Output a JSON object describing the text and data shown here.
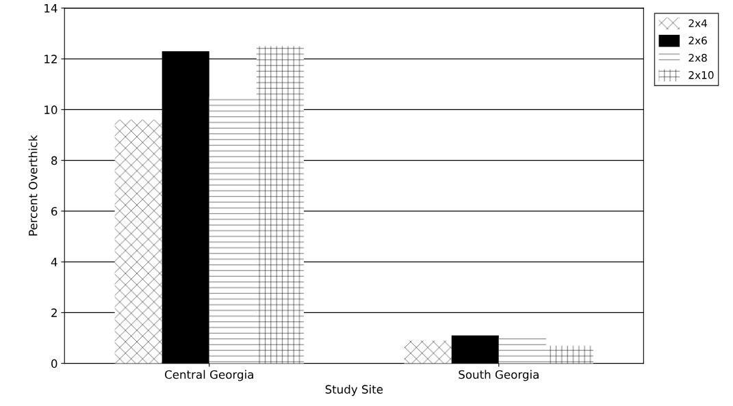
{
  "chart_data": {
    "type": "bar",
    "xlabel": "Study Site",
    "ylabel": "Percent Overthick",
    "categories": [
      "Central Georgia",
      "South Georgia"
    ],
    "series": [
      {
        "name": "2x4",
        "color": "#ffffff",
        "values": [
          9.6,
          0.9
        ]
      },
      {
        "name": "2x6",
        "color": "#000000",
        "values": [
          12.3,
          1.1
        ]
      },
      {
        "name": "2x8",
        "color": "#ffffff",
        "values": [
          10.5,
          1.0
        ]
      },
      {
        "name": "2x10",
        "color": "#ffffff",
        "values": [
          12.5,
          0.7
        ]
      }
    ],
    "ylim": [
      0,
      14
    ],
    "yticks": [
      0,
      2,
      4,
      6,
      8,
      10,
      12,
      14
    ],
    "grid": "y",
    "legend": "right"
  }
}
